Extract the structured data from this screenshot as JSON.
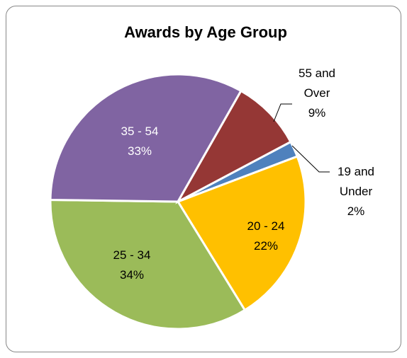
{
  "chart_data": {
    "type": "pie",
    "title": "Awards by Age Group",
    "categories": [
      "19 and Under",
      "20 - 24",
      "25 - 34",
      "35 - 54",
      "55 and Over"
    ],
    "values": [
      2,
      22,
      34,
      33,
      9
    ],
    "value_labels": [
      "2%",
      "22%",
      "34%",
      "33%",
      "9%"
    ],
    "colors": [
      "#4f81bd",
      "#ffc000",
      "#9bbb59",
      "#8064a2",
      "#953735"
    ]
  }
}
